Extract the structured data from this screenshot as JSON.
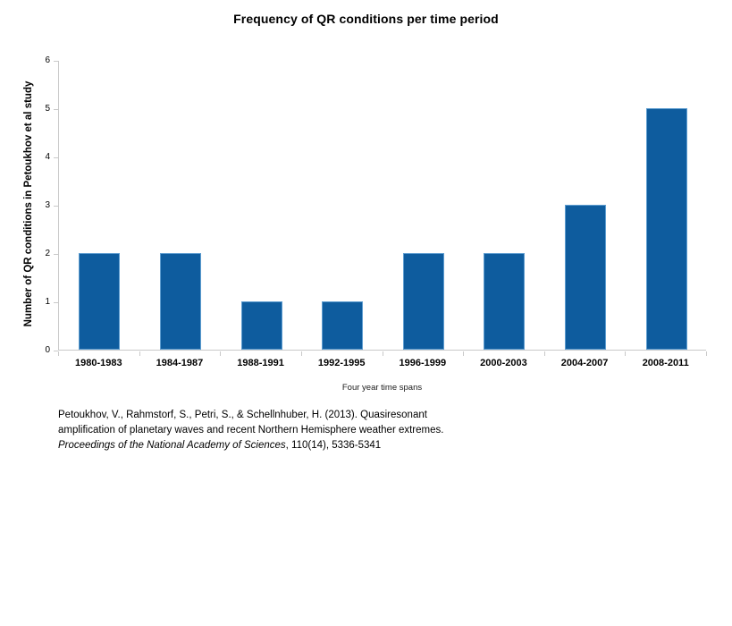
{
  "chart_data": {
    "type": "bar",
    "title": "Frequency of QR conditions per time period",
    "categories": [
      "1980-1983",
      "1984-1987",
      "1988-1991",
      "1992-1995",
      "1996-1999",
      "2000-2003",
      "2004-2007",
      "2008-2011"
    ],
    "values": [
      2,
      2,
      1,
      1,
      2,
      2,
      3,
      5
    ],
    "xlabel": "Four year time spans",
    "ylabel": "Number of QR conditions in Petoukhov et al study",
    "ylim": [
      0,
      6
    ],
    "ytick_step": 1,
    "grid": "off",
    "legend": "none",
    "colors": {
      "bar_fill": "#0E5C9E",
      "bar_border": "#5E9DD0",
      "axis": "#C9C9C9",
      "text": "#000000"
    }
  },
  "citation": {
    "line1": "Petoukhov, V., Rahmstorf, S., Petri, S., & Schellnhuber, H. (2013). Quasiresonant",
    "line2": "amplification of planetary waves and recent Northern Hemisphere weather extremes.",
    "line3_italic": "Proceedings of the National Academy of Sciences",
    "line3_regular": ", 110(14), 5336-5341"
  }
}
